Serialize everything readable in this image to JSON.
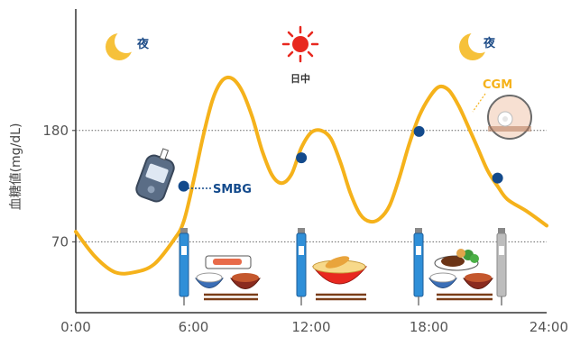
{
  "chart_data": {
    "type": "line",
    "ylabel": "血糖値(mg/dL)",
    "x_ticks": [
      "0:00",
      "6:00",
      "12:00",
      "18:00",
      "24:00"
    ],
    "y_ticks": [
      70,
      180
    ],
    "xlim": [
      0,
      24
    ],
    "ylim": [
      0,
      300
    ],
    "reference_lines": [
      180,
      70
    ],
    "grid": false,
    "series": [
      {
        "name": "CGM",
        "color": "#f5b21b",
        "x": [
          0,
          1,
          2,
          3,
          4,
          5,
          5.5,
          6,
          6.5,
          7,
          7.5,
          8,
          8.5,
          9,
          9.5,
          10,
          10.5,
          11,
          11.5,
          12,
          12.5,
          13,
          13.5,
          14,
          14.5,
          15,
          15.5,
          16,
          16.5,
          17,
          17.5,
          18,
          18.5,
          19,
          19.5,
          20,
          20.5,
          21,
          21.5,
          22,
          23,
          24
        ],
        "y": [
          80,
          55,
          40,
          40,
          48,
          72,
          90,
          130,
          175,
          212,
          230,
          231,
          218,
          193,
          160,
          136,
          128,
          137,
          163,
          178,
          180,
          172,
          148,
          118,
          97,
          90,
          93,
          106,
          134,
          167,
          194,
          212,
          223,
          220,
          205,
          184,
          162,
          140,
          125,
          112,
          100,
          86
        ]
      },
      {
        "name": "SMBG",
        "color": "#134a8c",
        "x": [
          5.5,
          11.5,
          17.5,
          21.5
        ],
        "y": [
          125,
          153,
          179,
          133
        ]
      }
    ],
    "annotations": {
      "night": "夜",
      "daytime": "日中",
      "cgm": "CGM",
      "smbg": "SMBG"
    }
  }
}
